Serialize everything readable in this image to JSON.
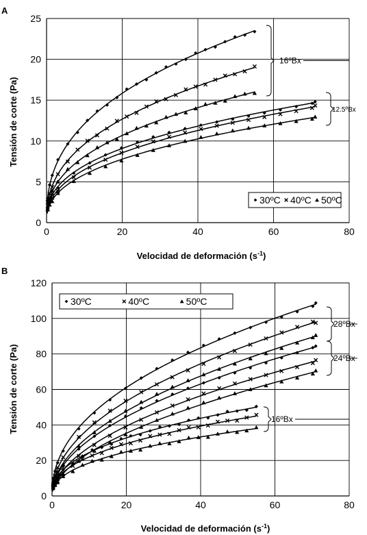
{
  "chart_data": [
    {
      "panel": "A",
      "type": "scatter",
      "xlabel": "Velocidad de deformación (s",
      "xlabel_sup": "-1",
      "xlabel_end": ")",
      "ylabel": "Tensión de corte (Pa)",
      "xlim": [
        0,
        80
      ],
      "ylim": [
        0,
        25
      ],
      "xticks": [
        "0",
        "20",
        "40",
        "60",
        "80"
      ],
      "yticks": [
        "0",
        "5",
        "10",
        "15",
        "20",
        "25"
      ],
      "grid": true,
      "legend_position": "bottom-right",
      "legend": [
        {
          "marker": "diamond",
          "label": "30ºC"
        },
        {
          "marker": "cross",
          "label": "40ºC"
        },
        {
          "marker": "triangle",
          "label": "50ºC"
        }
      ],
      "groups": [
        {
          "label": "16ºBx",
          "y_range": [
            15.5,
            24
          ]
        },
        {
          "label": "12.5ºBx",
          "y_range": [
            13,
            15
          ]
        }
      ],
      "series": [
        {
          "temperature": "30ºC",
          "concentration": "16ºBx",
          "marker": "diamond",
          "x_max": 55,
          "y_end": 23.5,
          "exponent": 0.39
        },
        {
          "temperature": "40ºC",
          "concentration": "16ºBx",
          "marker": "cross",
          "x_max": 55,
          "y_end": 19.0,
          "exponent": 0.4
        },
        {
          "temperature": "50ºC",
          "concentration": "16ºBx",
          "marker": "triangle",
          "x_max": 55,
          "y_end": 16.0,
          "exponent": 0.4
        },
        {
          "temperature": "30ºC",
          "concentration": "12.5ºBx",
          "marker": "diamond",
          "x_max": 71,
          "y_end": 14.7,
          "exponent": 0.38
        },
        {
          "temperature": "40ºC",
          "concentration": "12.5ºBx",
          "marker": "cross",
          "x_max": 71,
          "y_end": 14.2,
          "exponent": 0.4
        },
        {
          "temperature": "50ºC",
          "concentration": "12.5ºBx",
          "marker": "triangle",
          "x_max": 71,
          "y_end": 12.9,
          "exponent": 0.4
        }
      ]
    },
    {
      "panel": "B",
      "type": "scatter",
      "xlabel": "Velocidad de deformación (s",
      "xlabel_sup": "-1",
      "xlabel_end": ")",
      "ylabel": "Tensión de corte (Pa)",
      "xlim": [
        0,
        80
      ],
      "ylim": [
        0,
        120
      ],
      "xticks": [
        "0",
        "20",
        "40",
        "60",
        "80"
      ],
      "yticks": [
        "0",
        "20",
        "40",
        "60",
        "80",
        "100",
        "120"
      ],
      "grid": true,
      "legend_position": "top-left",
      "legend": [
        {
          "marker": "diamond",
          "label": "30ºC"
        },
        {
          "marker": "cross",
          "label": "40ºC"
        },
        {
          "marker": "triangle",
          "label": "50ºC"
        }
      ],
      "groups": [
        {
          "label": "28ºBx",
          "y_range": [
            90,
            108
          ]
        },
        {
          "label": "24ºBx",
          "y_range": [
            70,
            85
          ]
        },
        {
          "label": "16ºBx",
          "y_range": [
            38,
            50
          ]
        }
      ],
      "series": [
        {
          "temperature": "30ºC",
          "concentration": "28ºBx",
          "marker": "diamond",
          "x_max": 71,
          "y_end": 108,
          "exponent": 0.45
        },
        {
          "temperature": "40ºC",
          "concentration": "28ºBx",
          "marker": "cross",
          "x_max": 71,
          "y_end": 98,
          "exponent": 0.48
        },
        {
          "temperature": "50ºC",
          "concentration": "28ºBx",
          "marker": "triangle",
          "x_max": 71,
          "y_end": 90,
          "exponent": 0.5
        },
        {
          "temperature": "30ºC",
          "concentration": "24ºBx",
          "marker": "diamond",
          "x_max": 71,
          "y_end": 84,
          "exponent": 0.5
        },
        {
          "temperature": "40ºC",
          "concentration": "24ºBx",
          "marker": "cross",
          "x_max": 71,
          "y_end": 76,
          "exponent": 0.52
        },
        {
          "temperature": "50ºC",
          "concentration": "24ºBx",
          "marker": "triangle",
          "x_max": 71,
          "y_end": 70,
          "exponent": 0.54
        },
        {
          "temperature": "30ºC",
          "concentration": "16ºBx",
          "marker": "diamond",
          "x_max": 55,
          "y_end": 50,
          "exponent": 0.42
        },
        {
          "temperature": "40ºC",
          "concentration": "16ºBx",
          "marker": "cross",
          "x_max": 55,
          "y_end": 45,
          "exponent": 0.42
        },
        {
          "temperature": "50ºC",
          "concentration": "16ºBx",
          "marker": "triangle",
          "x_max": 55,
          "y_end": 38,
          "exponent": 0.42
        }
      ]
    }
  ]
}
